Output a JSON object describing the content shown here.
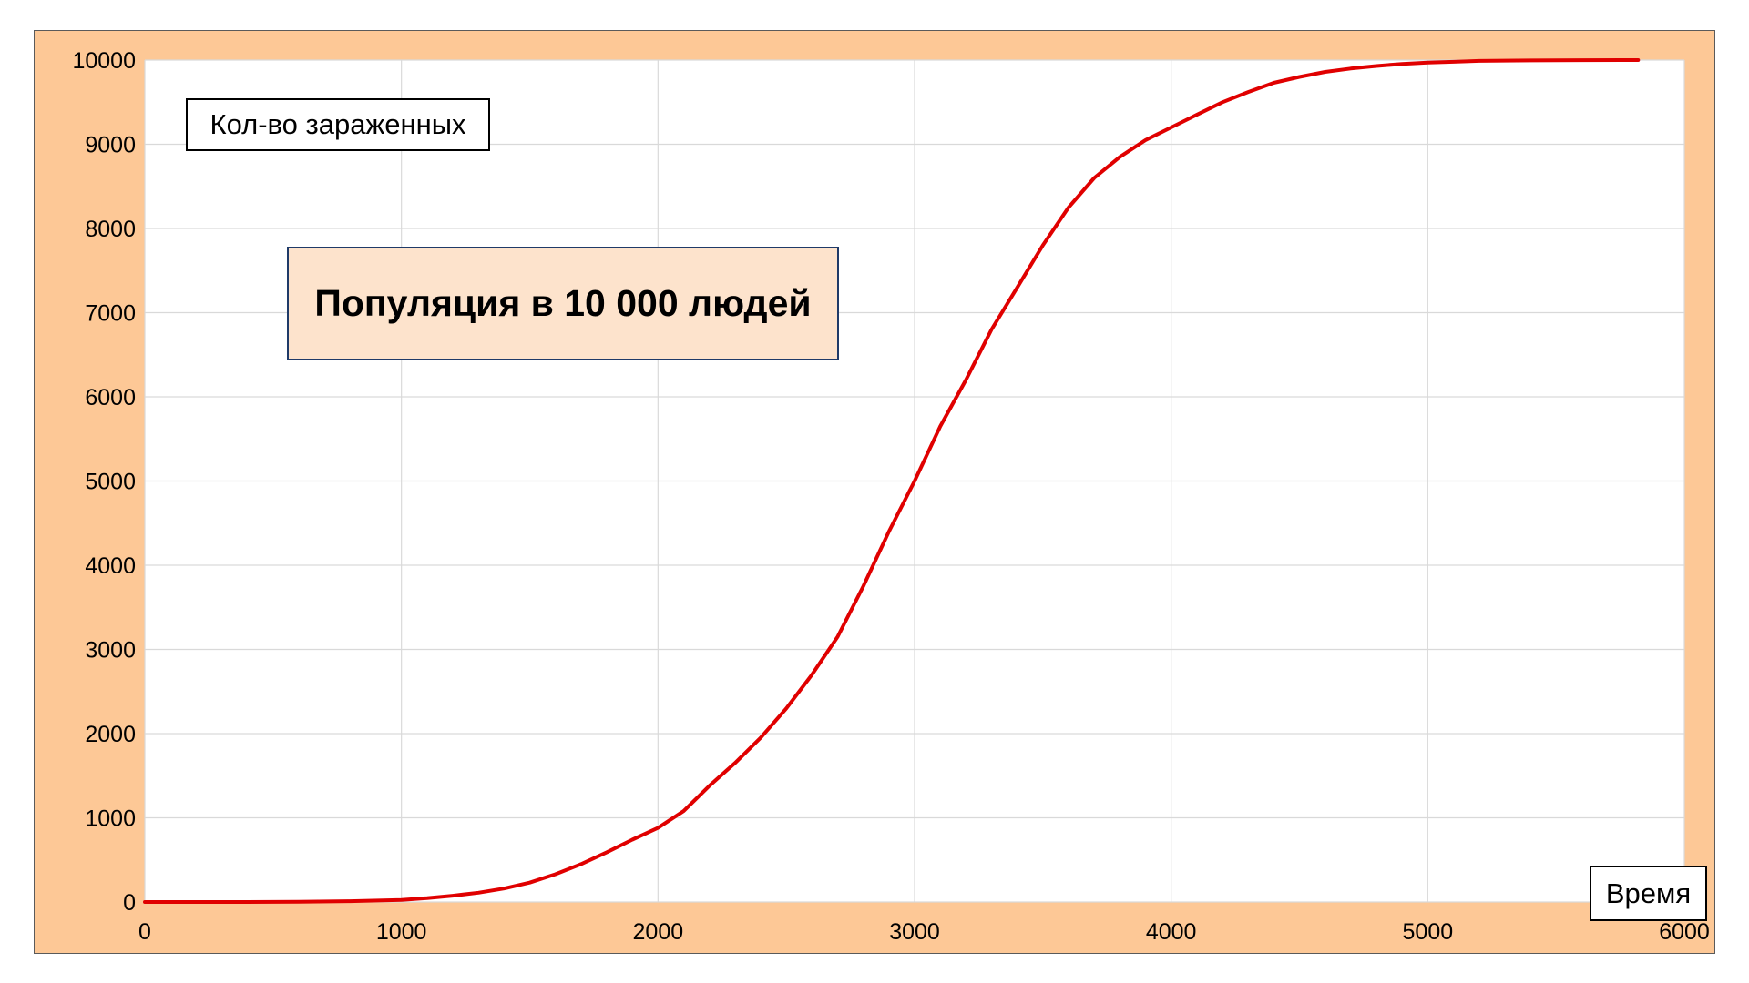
{
  "chart_data": {
    "type": "line",
    "title": "Популяция в 10 000 людей",
    "xlabel": "Время",
    "ylabel": "Кол-во зараженных",
    "xlim": [
      0,
      6000
    ],
    "ylim": [
      0,
      10000
    ],
    "x_ticks": [
      "0",
      "1000",
      "2000",
      "3000",
      "4000",
      "5000",
      "6000"
    ],
    "y_ticks": [
      "0",
      "1000",
      "2000",
      "3000",
      "4000",
      "5000",
      "6000",
      "7000",
      "8000",
      "9000",
      "10000"
    ],
    "grid": true,
    "series": [
      {
        "color": "#e00000",
        "x": [
          0,
          200,
          400,
          600,
          800,
          1000,
          1100,
          1200,
          1300,
          1400,
          1500,
          1600,
          1700,
          1800,
          1900,
          2000,
          2100,
          2200,
          2300,
          2400,
          2500,
          2600,
          2700,
          2800,
          2900,
          3000,
          3100,
          3200,
          3300,
          3400,
          3500,
          3600,
          3700,
          3800,
          3900,
          4000,
          4100,
          4200,
          4300,
          4400,
          4500,
          4600,
          4700,
          4800,
          4900,
          5000,
          5100,
          5200,
          5400,
          5600,
          5820
        ],
        "y": [
          0,
          0,
          0,
          3,
          10,
          25,
          45,
          75,
          110,
          160,
          230,
          330,
          450,
          590,
          740,
          880,
          1080,
          1380,
          1650,
          1950,
          2300,
          2700,
          3150,
          3750,
          4400,
          5000,
          5650,
          6200,
          6800,
          7300,
          7800,
          8250,
          8600,
          8850,
          9050,
          9200,
          9350,
          9500,
          9620,
          9730,
          9800,
          9860,
          9900,
          9930,
          9955,
          9970,
          9980,
          9990,
          9996,
          9999,
          10000
        ]
      }
    ]
  },
  "colors": {
    "frame_background": "#fdc896",
    "plot_background": "#ffffff",
    "gridline": "#d9d9d9",
    "line": "#e00000",
    "title_box_background": "#fde3cc",
    "title_box_border": "#1f3a68"
  }
}
